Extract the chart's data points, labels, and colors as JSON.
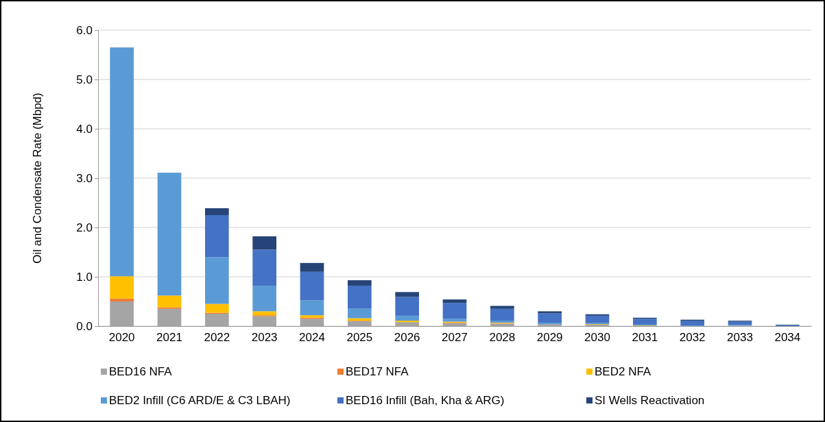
{
  "chart_data": {
    "type": "bar",
    "stacked": true,
    "ylabel": "Oil and Condensate Rate (Mbpd)",
    "categories": [
      "2020",
      "2021",
      "2022",
      "2023",
      "2024",
      "2025",
      "2026",
      "2027",
      "2028",
      "2029",
      "2030",
      "2031",
      "2032",
      "2033",
      "2034"
    ],
    "series": [
      {
        "name": "BED16 NFA",
        "color": "#a5a5a5",
        "values": [
          0.5,
          0.35,
          0.25,
          0.2,
          0.15,
          0.1,
          0.08,
          0.06,
          0.05,
          0.04,
          0.03,
          null,
          null,
          0.01,
          null
        ]
      },
      {
        "name": "BED17 NFA",
        "color": "#ed7d31",
        "values": [
          0.06,
          0.03,
          0.02,
          0.02,
          0.02,
          0.01,
          null,
          0.01,
          0.01,
          0,
          0,
          0,
          0,
          0,
          0
        ]
      },
      {
        "name": "BED2 NFA",
        "color": "#ffc000",
        "values": [
          0.45,
          0.24,
          0.18,
          0.08,
          0.05,
          0.05,
          0.03,
          0.02,
          0.01,
          null,
          0.01,
          0.01,
          0,
          0,
          0
        ]
      },
      {
        "name": "BED2 Infill (C6 ARD/E & C3 LBAH)",
        "color": "#5b9bd5",
        "values": [
          4.64,
          2.49,
          0.95,
          0.52,
          0.3,
          0.2,
          0.1,
          0.06,
          0.04,
          0.03,
          0.02,
          0.02,
          0.01,
          0.01,
          0
        ]
      },
      {
        "name": "BED16 Infill (Bah, Kha & ARG)",
        "color": "#4472c4",
        "values": [
          0,
          0,
          0.85,
          0.73,
          0.58,
          0.46,
          0.38,
          0.32,
          0.24,
          0.19,
          0.15,
          0.12,
          0.1,
          0.07,
          0.02
        ]
      },
      {
        "name": "SI Wells Reactivation",
        "color": "#264478",
        "values": [
          0,
          0,
          0.14,
          0.27,
          0.18,
          0.11,
          0.1,
          0.07,
          0.06,
          0.04,
          0.03,
          0.02,
          0.02,
          0.02,
          0.01
        ]
      }
    ],
    "ylim": [
      0,
      6
    ],
    "yticks": [
      {
        "value": 0,
        "label": "0.0"
      },
      {
        "value": 1,
        "label": "1.0"
      },
      {
        "value": 2,
        "label": "2.0"
      },
      {
        "value": 3,
        "label": "3.0"
      },
      {
        "value": 4,
        "label": "4.0"
      },
      {
        "value": 5,
        "label": "5.0"
      },
      {
        "value": 6,
        "label": "6.0"
      }
    ],
    "grid": "y",
    "legend": "bottom"
  }
}
